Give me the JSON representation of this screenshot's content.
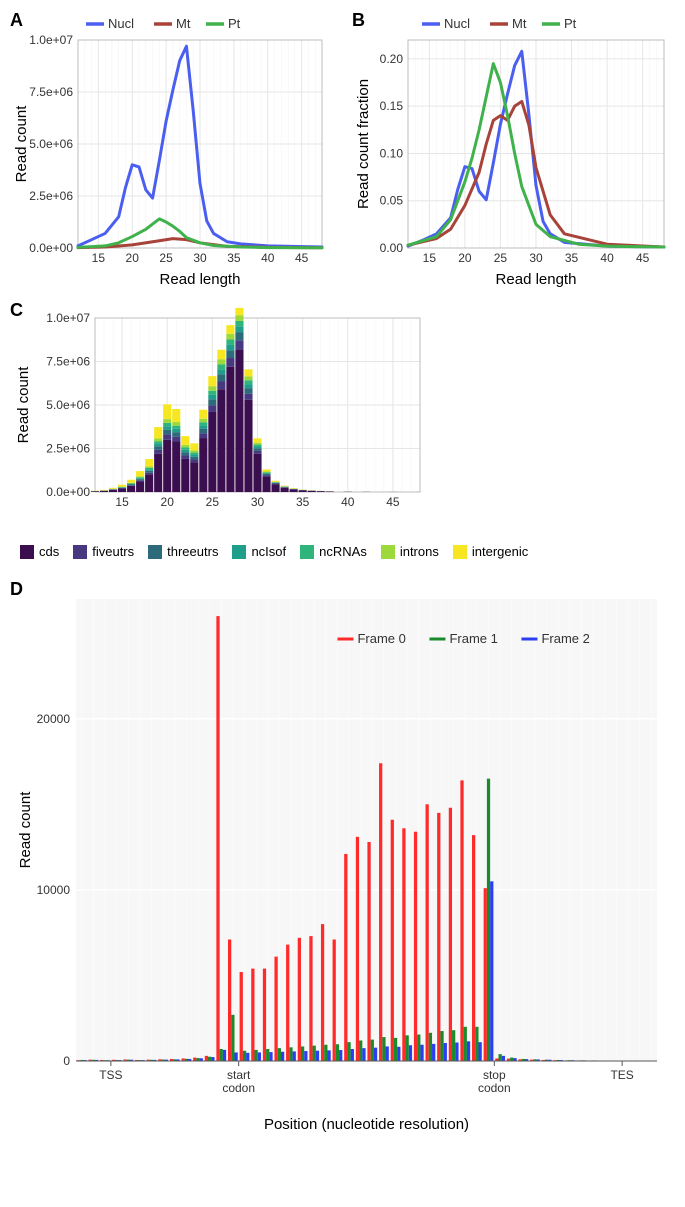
{
  "panelA": {
    "label": "A",
    "type": "line",
    "xlabel": "Read length",
    "ylabel": "Read count",
    "xlim": [
      12,
      48
    ],
    "xtick_step": 5,
    "xtick_start": 15,
    "ylim": [
      0,
      10000000
    ],
    "yticks": [
      0,
      2500000,
      5000000,
      7500000,
      10000000
    ],
    "ytick_labels": [
      "0.0e+00",
      "2.5e+06",
      "5.0e+06",
      "7.5e+06",
      "1.0e+07"
    ],
    "background": "#ffffff",
    "grid_color": "#e6e6e6",
    "line_width": 3,
    "legend": [
      {
        "label": "Nucl",
        "color": "#4a5ff0"
      },
      {
        "label": "Mt",
        "color": "#a8433a"
      },
      {
        "label": "Pt",
        "color": "#3fb24c"
      }
    ],
    "series": {
      "Nucl": {
        "color": "#4a5ff0",
        "x": [
          12,
          14,
          16,
          18,
          19,
          20,
          21,
          22,
          23,
          24,
          25,
          26,
          27,
          28,
          29,
          30,
          31,
          32,
          34,
          36,
          40,
          48
        ],
        "y": [
          100000,
          400000,
          700000,
          1500000,
          2900000,
          4000000,
          3900000,
          2800000,
          2400000,
          4200000,
          6100000,
          7600000,
          9000000,
          9700000,
          6600000,
          3100000,
          1300000,
          700000,
          300000,
          200000,
          100000,
          50000
        ]
      },
      "Mt": {
        "color": "#a8433a",
        "x": [
          12,
          16,
          20,
          24,
          26,
          28,
          30,
          34,
          40,
          48
        ],
        "y": [
          20000,
          50000,
          150000,
          350000,
          450000,
          400000,
          250000,
          80000,
          30000,
          10000
        ]
      },
      "Pt": {
        "color": "#3fb24c",
        "x": [
          12,
          16,
          18,
          20,
          22,
          23,
          24,
          25,
          26,
          27,
          28,
          30,
          32,
          36,
          40,
          48
        ],
        "y": [
          30000,
          100000,
          250000,
          550000,
          900000,
          1150000,
          1400000,
          1250000,
          1050000,
          800000,
          500000,
          250000,
          120000,
          50000,
          20000,
          10000
        ]
      }
    }
  },
  "panelB": {
    "label": "B",
    "type": "line",
    "xlabel": "Read length",
    "ylabel": "Read count fraction",
    "xlim": [
      12,
      48
    ],
    "xtick_step": 5,
    "xtick_start": 15,
    "ylim": [
      0,
      0.22
    ],
    "yticks": [
      0,
      0.05,
      0.1,
      0.15,
      0.2
    ],
    "ytick_labels": [
      "0.00",
      "0.05",
      "0.10",
      "0.15",
      "0.20"
    ],
    "background": "#ffffff",
    "grid_color": "#e6e6e6",
    "line_width": 3,
    "legend": [
      {
        "label": "Nucl",
        "color": "#4a5ff0"
      },
      {
        "label": "Mt",
        "color": "#a8433a"
      },
      {
        "label": "Pt",
        "color": "#3fb24c"
      }
    ],
    "series": {
      "Nucl": {
        "color": "#4a5ff0",
        "x": [
          12,
          14,
          16,
          18,
          19,
          20,
          21,
          22,
          23,
          24,
          25,
          26,
          27,
          28,
          29,
          30,
          31,
          32,
          34,
          40,
          48
        ],
        "y": [
          0.002,
          0.008,
          0.015,
          0.032,
          0.062,
          0.086,
          0.084,
          0.06,
          0.051,
          0.09,
          0.131,
          0.163,
          0.193,
          0.208,
          0.141,
          0.066,
          0.028,
          0.015,
          0.006,
          0.002,
          0.001
        ]
      },
      "Mt": {
        "color": "#a8433a",
        "x": [
          12,
          16,
          18,
          20,
          22,
          23,
          24,
          25,
          26,
          27,
          28,
          29,
          30,
          32,
          34,
          40,
          48
        ],
        "y": [
          0.003,
          0.01,
          0.02,
          0.045,
          0.08,
          0.11,
          0.135,
          0.14,
          0.135,
          0.15,
          0.155,
          0.13,
          0.085,
          0.035,
          0.015,
          0.004,
          0.001
        ]
      },
      "Pt": {
        "color": "#3fb24c",
        "x": [
          12,
          16,
          18,
          20,
          21,
          22,
          23,
          24,
          25,
          26,
          27,
          28,
          30,
          32,
          36,
          40,
          48
        ],
        "y": [
          0.003,
          0.012,
          0.03,
          0.07,
          0.095,
          0.125,
          0.16,
          0.195,
          0.175,
          0.14,
          0.1,
          0.065,
          0.025,
          0.012,
          0.004,
          0.002,
          0.001
        ]
      }
    }
  },
  "panelC": {
    "label": "C",
    "type": "stacked-bar",
    "ylabel": "Read count",
    "xlim": [
      12,
      48
    ],
    "xtick_step": 5,
    "xtick_start": 15,
    "ylim": [
      0,
      10000000
    ],
    "yticks": [
      0,
      2500000,
      5000000,
      7500000,
      10000000
    ],
    "ytick_labels": [
      "0.0e+00",
      "2.5e+06",
      "5.0e+06",
      "7.5e+06",
      "1.0e+07"
    ],
    "background": "#ffffff",
    "grid_color": "#e6e6e6",
    "bar_width": 0.9,
    "categories_x": [
      12,
      13,
      14,
      15,
      16,
      17,
      18,
      19,
      20,
      21,
      22,
      23,
      24,
      25,
      26,
      27,
      28,
      29,
      30,
      31,
      32,
      33,
      34,
      35,
      36,
      37,
      38,
      40,
      42,
      45,
      48
    ],
    "legend": [
      {
        "label": "cds",
        "color": "#3b0f4f"
      },
      {
        "label": "fiveutrs",
        "color": "#48387f"
      },
      {
        "label": "threeutrs",
        "color": "#2e6b7a"
      },
      {
        "label": "ncIsof",
        "color": "#1f9e8a"
      },
      {
        "label": "ncRNAs",
        "color": "#2fb47c"
      },
      {
        "label": "introns",
        "color": "#9dd93b"
      },
      {
        "label": "intergenic",
        "color": "#f7e723"
      }
    ],
    "stacks": {
      "cds": [
        40000,
        60000,
        120000,
        200000,
        350000,
        600000,
        1000000,
        2200000,
        3000000,
        2900000,
        1900000,
        1700000,
        3100000,
        4600000,
        5900000,
        7200000,
        8200000,
        5300000,
        2200000,
        900000,
        450000,
        250000,
        150000,
        100000,
        70000,
        50000,
        30000,
        15000,
        8000,
        4000,
        2000
      ],
      "fiveutrs": [
        5000,
        8000,
        15000,
        25000,
        40000,
        70000,
        110000,
        220000,
        300000,
        280000,
        200000,
        170000,
        280000,
        380000,
        450000,
        500000,
        520000,
        350000,
        160000,
        70000,
        35000,
        20000,
        12000,
        8000,
        5000,
        3000,
        2000,
        1000,
        500,
        200,
        100
      ],
      "threeutrs": [
        5000,
        8000,
        15000,
        25000,
        40000,
        70000,
        110000,
        210000,
        280000,
        260000,
        190000,
        160000,
        260000,
        350000,
        410000,
        450000,
        470000,
        320000,
        150000,
        65000,
        32000,
        18000,
        11000,
        7000,
        4500,
        2800,
        1800,
        900,
        400,
        180,
        90
      ],
      "ncIsof": [
        3000,
        5000,
        10000,
        18000,
        30000,
        50000,
        80000,
        150000,
        200000,
        190000,
        140000,
        120000,
        190000,
        250000,
        290000,
        320000,
        330000,
        230000,
        110000,
        48000,
        24000,
        13000,
        8000,
        5000,
        3200,
        2000,
        1300,
        650,
        300,
        130,
        60
      ],
      "ncRNAs": [
        3000,
        5000,
        10000,
        18000,
        30000,
        50000,
        80000,
        140000,
        190000,
        180000,
        130000,
        115000,
        180000,
        240000,
        280000,
        300000,
        310000,
        220000,
        105000,
        45000,
        22000,
        12000,
        7500,
        4700,
        3000,
        1900,
        1200,
        600,
        280,
        120,
        55
      ],
      "introns": [
        4000,
        6000,
        12000,
        22000,
        36000,
        60000,
        95000,
        160000,
        220000,
        210000,
        150000,
        130000,
        200000,
        260000,
        300000,
        320000,
        330000,
        230000,
        110000,
        50000,
        25000,
        14000,
        8500,
        5300,
        3300,
        2100,
        1300,
        650,
        300,
        130,
        60
      ],
      "intergenic": [
        20000,
        30000,
        60000,
        110000,
        180000,
        300000,
        420000,
        650000,
        850000,
        750000,
        500000,
        400000,
        520000,
        580000,
        550000,
        500000,
        420000,
        400000,
        250000,
        120000,
        60000,
        35000,
        22000,
        14000,
        9000,
        6000,
        4000,
        2000,
        1000,
        400,
        200
      ]
    }
  },
  "panelD": {
    "label": "D",
    "type": "grouped-bar",
    "xlabel": "Position (nucleotide resolution)",
    "ylabel": "Read count",
    "ylim": [
      0,
      27000
    ],
    "yticks": [
      0,
      10000,
      20000
    ],
    "background": "#f7f7f7",
    "grid_color": "#e6e6e6",
    "x_axis_labels": [
      {
        "pos": 0.06,
        "text": "TSS"
      },
      {
        "pos": 0.28,
        "text": "start\ncodon"
      },
      {
        "pos": 0.72,
        "text": "stop\ncodon"
      },
      {
        "pos": 0.94,
        "text": "TES"
      }
    ],
    "legend": [
      {
        "label": "Frame 0",
        "color": "#ff2a2a"
      },
      {
        "label": "Frame 1",
        "color": "#1b8a2a"
      },
      {
        "label": "Frame 2",
        "color": "#2a3ff0"
      }
    ],
    "n_positions": 50,
    "start_codon_idx": 13,
    "stop_codon_idx": 36,
    "frame0": [
      50,
      80,
      60,
      70,
      90,
      60,
      80,
      100,
      120,
      150,
      200,
      300,
      26000,
      7100,
      5200,
      5400,
      5400,
      6100,
      6800,
      7200,
      7300,
      8000,
      7100,
      12100,
      13100,
      12800,
      17400,
      14100,
      13600,
      13400,
      15000,
      14500,
      14800,
      16400,
      13200,
      10100,
      150,
      140,
      100,
      80,
      60,
      50,
      40,
      35,
      30,
      25,
      20,
      18,
      15,
      12
    ],
    "frame1": [
      60,
      70,
      50,
      60,
      80,
      55,
      70,
      85,
      100,
      130,
      170,
      250,
      700,
      2700,
      600,
      650,
      700,
      750,
      800,
      850,
      900,
      950,
      980,
      1100,
      1200,
      1250,
      1400,
      1350,
      1500,
      1550,
      1650,
      1750,
      1800,
      2000,
      2000,
      16500,
      400,
      200,
      120,
      100,
      80,
      60,
      50,
      40,
      35,
      30,
      25,
      22,
      18,
      15
    ],
    "frame2": [
      55,
      65,
      48,
      55,
      75,
      52,
      66,
      80,
      95,
      120,
      160,
      230,
      650,
      500,
      480,
      500,
      520,
      540,
      560,
      580,
      600,
      620,
      640,
      700,
      750,
      780,
      850,
      830,
      920,
      950,
      1000,
      1050,
      1080,
      1150,
      1100,
      10500,
      300,
      170,
      110,
      90,
      75,
      55,
      45,
      38,
      32,
      28,
      23,
      20,
      17,
      14
    ]
  }
}
